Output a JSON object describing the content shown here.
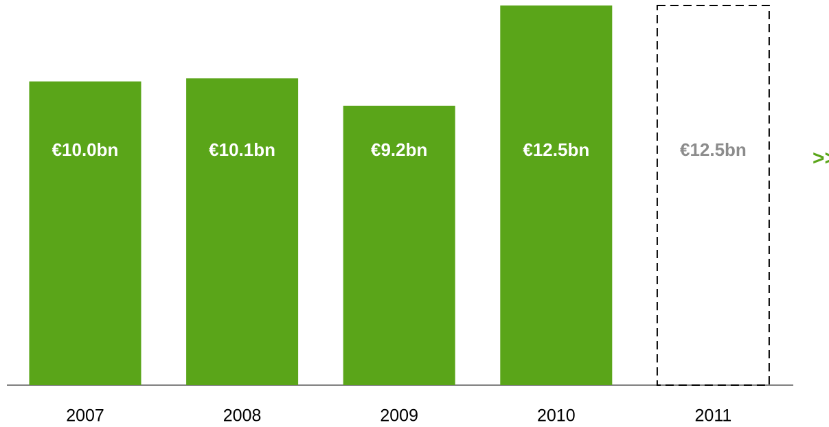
{
  "chart_data": {
    "type": "bar",
    "categories": [
      "2007",
      "2008",
      "2009",
      "2010",
      "2011"
    ],
    "values": [
      10.0,
      10.1,
      9.2,
      12.5,
      12.5
    ],
    "value_labels": [
      "€10.0bn",
      "€10.1bn",
      "€9.2bn",
      "€12.5bn",
      "€12.5bn"
    ],
    "color": "#5aa519",
    "dashed_outline": [
      false,
      false,
      false,
      false,
      true
    ],
    "annotation": ">>"
  }
}
